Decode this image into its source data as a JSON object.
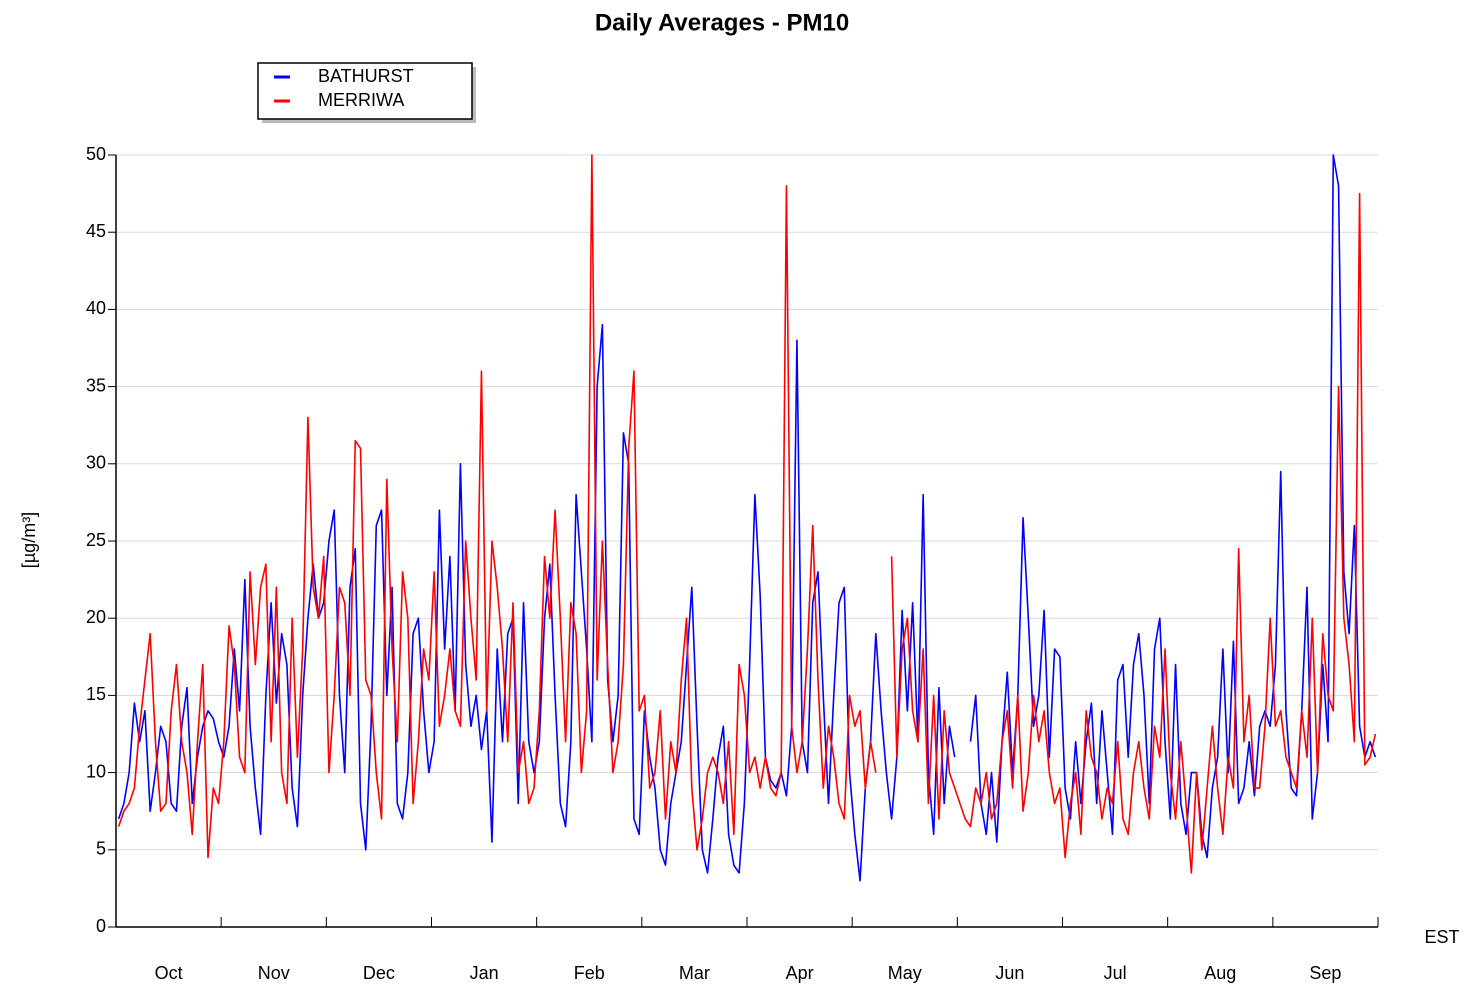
{
  "chart_data": {
    "type": "line",
    "title": "Daily Averages - PM10",
    "y_label": "[µg/m³]",
    "x_label": "EST",
    "months": [
      "Oct",
      "Nov",
      "Dec",
      "Jan",
      "Feb",
      "Mar",
      "Apr",
      "May",
      "Jun",
      "Jul",
      "Aug",
      "Sep"
    ],
    "ylim": [
      0,
      50
    ],
    "yticks": [
      0,
      5,
      10,
      15,
      20,
      25,
      30,
      35,
      40,
      45,
      50
    ],
    "grid": true,
    "legend": "top-left",
    "series": [
      {
        "name": "BATHURST",
        "color": "#0000ff",
        "values": [
          7,
          8,
          10,
          14.5,
          12,
          14,
          7.5,
          10,
          13,
          12,
          8,
          7.5,
          13,
          15.5,
          8,
          11,
          13,
          14,
          13.5,
          12,
          11,
          13,
          18,
          14,
          22.5,
          13,
          9,
          6,
          15,
          21,
          14.5,
          19,
          17,
          9,
          6.5,
          15,
          20,
          23.5,
          20,
          21,
          25,
          27,
          15,
          10,
          22,
          24.5,
          8,
          5,
          13,
          26,
          27,
          15,
          22,
          8,
          7,
          10,
          19,
          20,
          14,
          10,
          12,
          27,
          18,
          24,
          14,
          30,
          17,
          13,
          15,
          11.5,
          14,
          5.5,
          18,
          12,
          19,
          20,
          8,
          21,
          12,
          10,
          12,
          20,
          23.5,
          15,
          8,
          6.5,
          12,
          28,
          23,
          18,
          12,
          35,
          39,
          16,
          12,
          15,
          32,
          30,
          7,
          6,
          14,
          11,
          9,
          5,
          4,
          8,
          10,
          12,
          17,
          22,
          13,
          5,
          3.5,
          7,
          11,
          13,
          6,
          4,
          3.5,
          8,
          17,
          28,
          21.5,
          11,
          9.5,
          9,
          10,
          8.5,
          13,
          38,
          12,
          10,
          21,
          23,
          15,
          8,
          15,
          21,
          22,
          10,
          6,
          3,
          9,
          12,
          19,
          14,
          10,
          7,
          11,
          20.5,
          14,
          21,
          12,
          28,
          10,
          6,
          15.5,
          8,
          13,
          11,
          null,
          null,
          12,
          15,
          8,
          6,
          10,
          5.5,
          12,
          16.5,
          10,
          15,
          26.5,
          20,
          13,
          15,
          20.5,
          11,
          18,
          17.5,
          9,
          7,
          12,
          8,
          12,
          14.5,
          8,
          14,
          10,
          6,
          16,
          17,
          11,
          17,
          19,
          15,
          8,
          18,
          20,
          12,
          7,
          17,
          8,
          6,
          10,
          10,
          6,
          4.5,
          9,
          11,
          18,
          10,
          18.5,
          8,
          9,
          12,
          8.5,
          13,
          14,
          13,
          17,
          29.5,
          14,
          9,
          8.5,
          14,
          22,
          7,
          10,
          17,
          12,
          50,
          48,
          23,
          19,
          26,
          13,
          11,
          12,
          11
        ]
      },
      {
        "name": "MERRIWA",
        "color": "#ff0000",
        "values": [
          6.5,
          7.5,
          8,
          9,
          13,
          16,
          19,
          12,
          7.5,
          8,
          14,
          17,
          12,
          10,
          6,
          12,
          17,
          4.5,
          9,
          8,
          12,
          19.5,
          17,
          11,
          10,
          23,
          17,
          22,
          23.5,
          12,
          22,
          10,
          8,
          20,
          11,
          18,
          33,
          22,
          20,
          24,
          10,
          15,
          22,
          21,
          15,
          31.5,
          31,
          16,
          15,
          10,
          7,
          29,
          18,
          12,
          23,
          20,
          8,
          12,
          18,
          16,
          23,
          13,
          15,
          18,
          14,
          13,
          25,
          20,
          16,
          36,
          14,
          25,
          22,
          18,
          12,
          21,
          10,
          12,
          8,
          9,
          14,
          24,
          20,
          27,
          20,
          12,
          21,
          19,
          10,
          14,
          50,
          16,
          25,
          17,
          10,
          12,
          17,
          31,
          36,
          14,
          15,
          9,
          10,
          14,
          7,
          12,
          10,
          16,
          20,
          9,
          5,
          7,
          10,
          11,
          10,
          8,
          12,
          6,
          17,
          15,
          10,
          11,
          9,
          11,
          9,
          8.5,
          10,
          48,
          13,
          10,
          12,
          18,
          26,
          16,
          9,
          13,
          11,
          8,
          7,
          15,
          13,
          14,
          9,
          12,
          10,
          null,
          null,
          24,
          11,
          18,
          20,
          14,
          12,
          18,
          8,
          15,
          7,
          14,
          10,
          9,
          8,
          7,
          6.5,
          9,
          8,
          10,
          7,
          8,
          12,
          14,
          9,
          15,
          7.5,
          10,
          15,
          12,
          14,
          10,
          8,
          9,
          4.5,
          8,
          10,
          6,
          14,
          11,
          10,
          7,
          9,
          8,
          12,
          7,
          6,
          10,
          12,
          9,
          7,
          13,
          11,
          18,
          10,
          7,
          12,
          8,
          3.5,
          10,
          5,
          9,
          13,
          9,
          6,
          11,
          9,
          24.5,
          12,
          15,
          9,
          9,
          13,
          20,
          13,
          14,
          11,
          10,
          9,
          14,
          11,
          20,
          10,
          19,
          15,
          14,
          35,
          20,
          17,
          12,
          47.5,
          10.5,
          11,
          12.5
        ]
      }
    ]
  }
}
